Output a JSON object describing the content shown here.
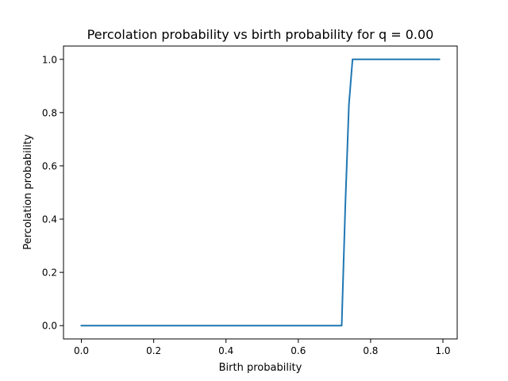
{
  "chart_data": {
    "type": "line",
    "title": "Percolation probability vs birth probability for q = 0.00",
    "xlabel": "Birth probability",
    "ylabel": "Percolation probability",
    "xlim": [
      -0.0495,
      1.0395
    ],
    "ylim": [
      -0.05,
      1.05
    ],
    "x_ticks": [
      "0.0",
      "0.2",
      "0.4",
      "0.6",
      "0.8",
      "1.0"
    ],
    "y_ticks": [
      "0.0",
      "0.2",
      "0.4",
      "0.6",
      "0.8",
      "1.0"
    ],
    "grid": false,
    "series": [
      {
        "color": "#1f77b4",
        "x": [
          0.0,
          0.72,
          0.73,
          0.74,
          0.75,
          0.99
        ],
        "y": [
          0.0,
          0.0,
          0.45,
          0.83,
          1.0,
          1.0
        ]
      }
    ]
  }
}
